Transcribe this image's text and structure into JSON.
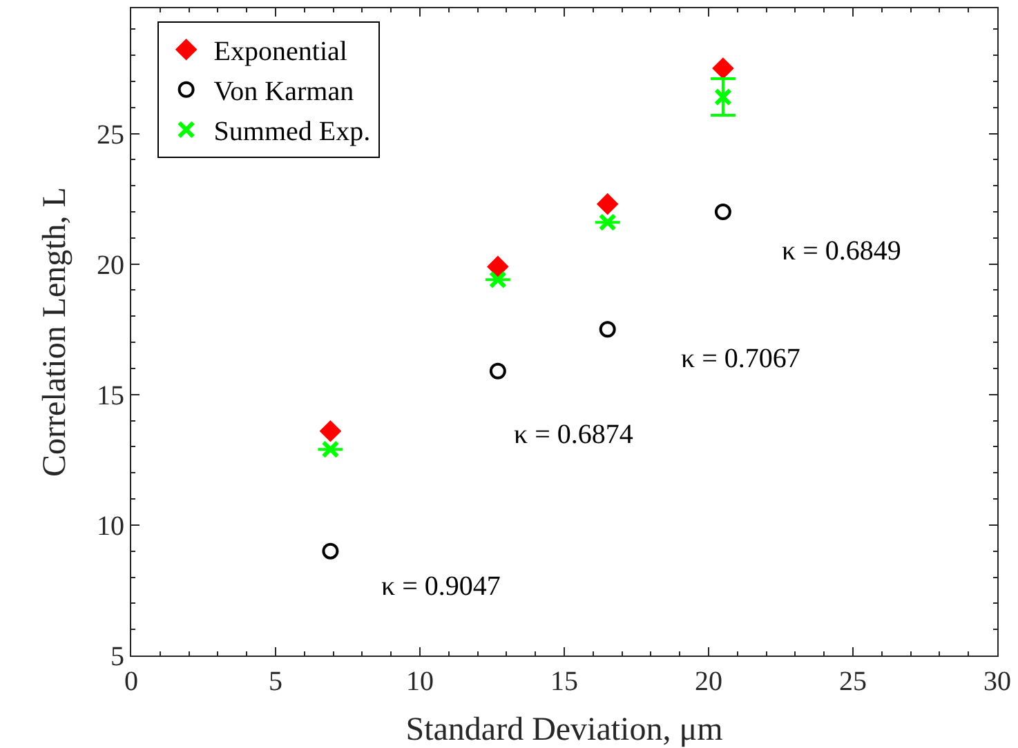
{
  "chart_data": {
    "type": "scatter",
    "xlabel": "Standard Deviation, μm",
    "ylabel": "Correlation Length, L",
    "x": [
      6.9,
      12.7,
      16.5,
      20.5
    ],
    "series": [
      {
        "name": "Exponential",
        "color": "#ff0000",
        "marker": "diamond",
        "values": [
          13.6,
          19.9,
          22.3,
          27.5
        ]
      },
      {
        "name": "Von Karman",
        "color": "#000000",
        "marker": "circle",
        "values": [
          9.0,
          15.9,
          17.5,
          22.0
        ]
      },
      {
        "name": "Summed Exp.",
        "color": "#00ff00",
        "marker": "cross",
        "values": [
          12.9,
          19.4,
          21.6,
          26.4
        ],
        "errors": [
          null,
          null,
          null,
          0.7
        ]
      }
    ],
    "annotations": [
      {
        "text": "κ = 0.9047",
        "x": 6.9,
        "y": 9.0
      },
      {
        "text": "κ = 0.6874",
        "x": 12.7,
        "y": 15.9
      },
      {
        "text": "κ = 0.7067",
        "x": 16.5,
        "y": 17.5
      },
      {
        "text": "κ = 0.6849",
        "x": 20.5,
        "y": 22.0
      }
    ],
    "xlim": [
      0,
      30
    ],
    "xticks": [
      0,
      5,
      10,
      15,
      20,
      25,
      30
    ],
    "ylim": [
      5,
      29.8
    ],
    "yticks": [
      5,
      10,
      15,
      20,
      25
    ],
    "legend": "top left"
  }
}
